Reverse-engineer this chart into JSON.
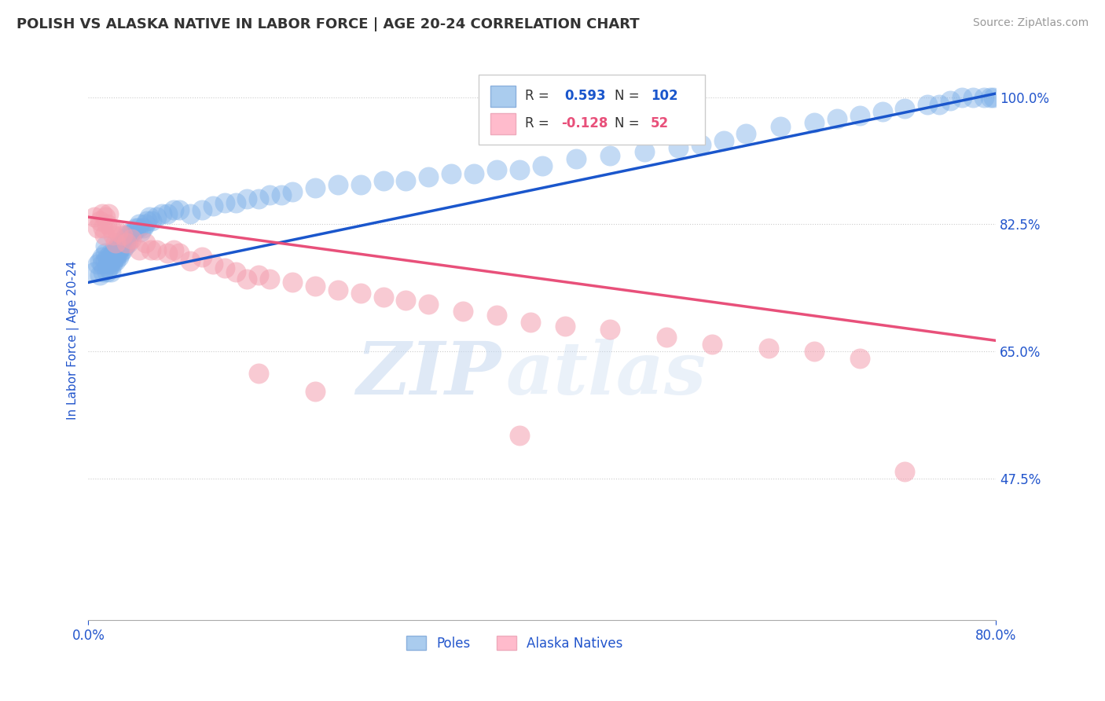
{
  "title": "POLISH VS ALASKA NATIVE IN LABOR FORCE | AGE 20-24 CORRELATION CHART",
  "source_text": "Source: ZipAtlas.com",
  "ylabel": "In Labor Force | Age 20-24",
  "xlim": [
    0.0,
    0.8
  ],
  "ylim": [
    0.28,
    1.05
  ],
  "ytick_positions": [
    1.0,
    0.825,
    0.65,
    0.475
  ],
  "ytick_labels": [
    "100.0%",
    "82.5%",
    "65.0%",
    "47.5%"
  ],
  "blue_R": 0.593,
  "blue_N": 102,
  "pink_R": -0.128,
  "pink_N": 52,
  "blue_color": "#7aaee8",
  "pink_color": "#f4a0b0",
  "blue_line_color": "#1a56cc",
  "pink_line_color": "#e8507a",
  "watermark_zip": "ZIP",
  "watermark_atlas": "atlas",
  "blue_trendline_x": [
    0.0,
    0.8
  ],
  "blue_trendline_y": [
    0.745,
    1.005
  ],
  "pink_trendline_x": [
    0.0,
    0.8
  ],
  "pink_trendline_y": [
    0.835,
    0.665
  ],
  "grid_color": "#cccccc",
  "title_color": "#333333",
  "axis_color": "#2255cc",
  "background_color": "#ffffff",
  "blue_scatter_x": [
    0.005,
    0.008,
    0.01,
    0.01,
    0.012,
    0.012,
    0.013,
    0.015,
    0.015,
    0.015,
    0.016,
    0.017,
    0.017,
    0.018,
    0.018,
    0.019,
    0.019,
    0.02,
    0.02,
    0.02,
    0.021,
    0.021,
    0.022,
    0.022,
    0.023,
    0.023,
    0.024,
    0.024,
    0.025,
    0.025,
    0.026,
    0.026,
    0.027,
    0.027,
    0.028,
    0.028,
    0.03,
    0.03,
    0.032,
    0.032,
    0.033,
    0.034,
    0.035,
    0.036,
    0.038,
    0.04,
    0.042,
    0.044,
    0.045,
    0.046,
    0.048,
    0.05,
    0.052,
    0.054,
    0.056,
    0.06,
    0.065,
    0.07,
    0.075,
    0.08,
    0.09,
    0.1,
    0.11,
    0.12,
    0.13,
    0.14,
    0.15,
    0.16,
    0.17,
    0.18,
    0.2,
    0.22,
    0.24,
    0.26,
    0.28,
    0.3,
    0.32,
    0.34,
    0.36,
    0.38,
    0.4,
    0.43,
    0.46,
    0.49,
    0.52,
    0.54,
    0.56,
    0.58,
    0.61,
    0.64,
    0.66,
    0.68,
    0.7,
    0.72,
    0.74,
    0.75,
    0.76,
    0.77,
    0.78,
    0.79,
    0.795,
    0.798
  ],
  "blue_scatter_y": [
    0.76,
    0.77,
    0.755,
    0.775,
    0.77,
    0.78,
    0.76,
    0.775,
    0.785,
    0.795,
    0.76,
    0.77,
    0.78,
    0.765,
    0.775,
    0.77,
    0.78,
    0.775,
    0.785,
    0.76,
    0.78,
    0.77,
    0.775,
    0.785,
    0.78,
    0.79,
    0.775,
    0.785,
    0.78,
    0.79,
    0.785,
    0.795,
    0.78,
    0.79,
    0.785,
    0.795,
    0.79,
    0.8,
    0.795,
    0.805,
    0.8,
    0.81,
    0.8,
    0.81,
    0.815,
    0.815,
    0.82,
    0.82,
    0.825,
    0.815,
    0.82,
    0.825,
    0.83,
    0.835,
    0.83,
    0.835,
    0.84,
    0.84,
    0.845,
    0.845,
    0.84,
    0.845,
    0.85,
    0.855,
    0.855,
    0.86,
    0.86,
    0.865,
    0.865,
    0.87,
    0.875,
    0.88,
    0.88,
    0.885,
    0.885,
    0.89,
    0.895,
    0.895,
    0.9,
    0.9,
    0.905,
    0.915,
    0.92,
    0.925,
    0.93,
    0.935,
    0.94,
    0.95,
    0.96,
    0.965,
    0.97,
    0.975,
    0.98,
    0.985,
    0.99,
    0.99,
    0.995,
    1.0,
    1.0,
    1.0,
    1.0,
    1.0
  ],
  "pink_scatter_x": [
    0.005,
    0.008,
    0.01,
    0.012,
    0.013,
    0.014,
    0.015,
    0.016,
    0.018,
    0.02,
    0.022,
    0.024,
    0.026,
    0.03,
    0.034,
    0.038,
    0.045,
    0.05,
    0.055,
    0.06,
    0.07,
    0.075,
    0.08,
    0.09,
    0.1,
    0.11,
    0.12,
    0.13,
    0.14,
    0.15,
    0.16,
    0.18,
    0.2,
    0.22,
    0.24,
    0.26,
    0.28,
    0.3,
    0.33,
    0.36,
    0.39,
    0.42,
    0.46,
    0.51,
    0.55,
    0.6,
    0.64,
    0.68,
    0.15,
    0.2,
    0.38,
    0.72
  ],
  "pink_scatter_y": [
    0.835,
    0.82,
    0.83,
    0.84,
    0.82,
    0.81,
    0.835,
    0.825,
    0.84,
    0.82,
    0.81,
    0.8,
    0.815,
    0.81,
    0.8,
    0.805,
    0.79,
    0.8,
    0.79,
    0.79,
    0.785,
    0.79,
    0.785,
    0.775,
    0.78,
    0.77,
    0.765,
    0.76,
    0.75,
    0.755,
    0.75,
    0.745,
    0.74,
    0.735,
    0.73,
    0.725,
    0.72,
    0.715,
    0.705,
    0.7,
    0.69,
    0.685,
    0.68,
    0.67,
    0.66,
    0.655,
    0.65,
    0.64,
    0.62,
    0.595,
    0.535,
    0.485
  ]
}
